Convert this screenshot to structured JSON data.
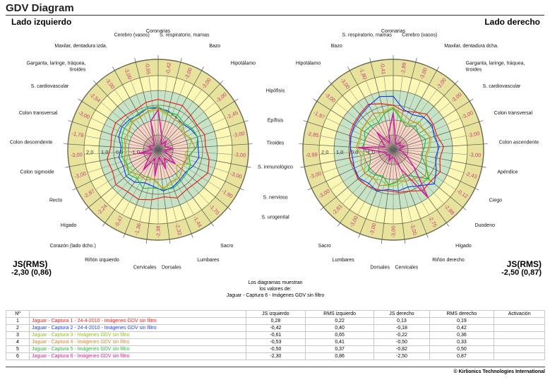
{
  "header": {
    "title": "GDV Diagram",
    "left_title": "Lado izquierdo",
    "right_title": "Lado derecho"
  },
  "summary": {
    "left": {
      "label": "JS(RMS)",
      "value": "-2,30 (0,86)"
    },
    "right": {
      "label": "JS(RMS)",
      "value": "-2,50 (0,87)"
    }
  },
  "note": {
    "lines": [
      "Los diagramas muestran",
      "los valores de:",
      "Jaguar - Captura 6 - Imágenes GDV sin filtro"
    ]
  },
  "shared_labels": [
    "Hipófisis",
    "Epífisis",
    "Tiroides",
    "S. inmunológico",
    "S. nervioso",
    "S. urogenital"
  ],
  "chart_data": [
    {
      "type": "radar",
      "title": "Lado izquierdo",
      "axes": [
        "Coronarias",
        "S. respiratorio, mamas",
        "Bazo",
        "Hipotálamo",
        "Hipófisis",
        "Epífisis",
        "Tiroides",
        "S. inmunológico",
        "S. nervioso",
        "S. urogenital",
        "Sacro",
        "Lumbares",
        "Dorsales",
        "Cervicales",
        "Riñón izquierdo",
        "Corazón (lado dcho.)",
        "Hígado",
        "Recto",
        "Colon sigmoide",
        "Colon descendente",
        "Colon transversal",
        "S. cardiovascular",
        "Garganta, laringe, tráquea,\ntiroides",
        "Maxilar, dentadura izda.",
        "Cerebro (vasos)"
      ],
      "sector_values": [
        "-0,42",
        "-3,00",
        "-3,00",
        "-3,00",
        "-2,45",
        "-3,00",
        "-3,00",
        "-3,00",
        "-1,90",
        "-1,70",
        "-1,44",
        "-2,33",
        "-2,38",
        "-1,36",
        "-0,47",
        "-2,24",
        "-2,87",
        "-3,00",
        "-3,00",
        "-1,78",
        "-3,00",
        "-2,54",
        "-3,00",
        "-3,00",
        "-0,65"
      ],
      "scale": {
        "min": -3,
        "max": 2,
        "ticks": [
          2,
          1,
          0,
          -1
        ],
        "tick_labels": [
          "2,0",
          "1,0",
          "0,0",
          "-1,0"
        ]
      },
      "series": [
        {
          "name": "Captura 1",
          "color": "#e8201c",
          "values": [
            0.4,
            0.3,
            0.4,
            0.2,
            0.1,
            0.3,
            0.2,
            0.5,
            0.7,
            0.4,
            0.3,
            0.5,
            0.2,
            0.4,
            0.6,
            0.5,
            0.7,
            0.4,
            0.5,
            0.2,
            0.3,
            0.4,
            0.2,
            0.1,
            0.3
          ]
        },
        {
          "name": "Captura 2",
          "color": "#1b3ee0",
          "values": [
            -0.2,
            -0.3,
            -0.5,
            -0.6,
            -0.4,
            -0.2,
            -0.3,
            -0.2,
            -0.4,
            -0.6,
            -0.5,
            -0.3,
            -0.2,
            -0.5,
            -0.6,
            -0.3,
            -0.2,
            -0.4,
            -0.3,
            -0.5,
            -0.2,
            -0.1,
            -0.2,
            -0.3,
            -0.1
          ]
        },
        {
          "name": "Captura 3",
          "color": "#9ccc2c",
          "values": [
            -0.3,
            -0.6,
            -0.4,
            -0.8,
            -1.0,
            -0.6,
            -0.9,
            -1.2,
            -0.7,
            -1.4,
            -0.8,
            -0.5,
            -0.4,
            -0.9,
            -1.1,
            -0.6,
            -0.8,
            -0.6,
            -0.9,
            -0.7,
            -0.8,
            -0.6,
            -0.5,
            -0.4,
            -0.4
          ]
        },
        {
          "name": "Captura 4",
          "color": "#d08a30",
          "values": [
            -0.2,
            -0.5,
            -0.7,
            -0.6,
            -0.9,
            -0.7,
            -0.5,
            -0.8,
            -1.1,
            -0.9,
            -0.6,
            -0.7,
            -0.3,
            -1.0,
            -0.8,
            -0.9,
            -0.6,
            -0.5,
            -0.7,
            -0.8,
            -0.6,
            -0.7,
            -0.4,
            -0.5,
            -0.3
          ]
        },
        {
          "name": "Captura 5",
          "color": "#2cb83c",
          "values": [
            -0.1,
            -0.4,
            -0.3,
            -0.5,
            -0.3,
            -0.2,
            -0.4,
            -0.9,
            -0.6,
            -0.5,
            -0.4,
            -0.2,
            -0.3,
            -0.4,
            -0.2,
            -0.6,
            -0.4,
            -0.7,
            -0.5,
            -0.6,
            -0.4,
            -0.3,
            -0.3,
            -0.2,
            -0.1
          ]
        },
        {
          "name": "Captura 6",
          "color": "#d020a0",
          "values": [
            -0.3,
            -2.0,
            -2.6,
            -2.2,
            -2.5,
            -2.4,
            -2.0,
            -2.6,
            -2.2,
            -1.5,
            -2.3,
            -1.6,
            -2.5,
            -1.2,
            -2.4,
            -1.3,
            -2.2,
            -2.5,
            -1.6,
            -2.6,
            -2.3,
            -2.5,
            -2.6,
            -2.4,
            -1.0
          ]
        }
      ]
    },
    {
      "type": "radar",
      "title": "Lado derecho",
      "axes": [
        "Coronarias",
        "Cerebro (vasos)",
        "Maxilar, dentadura dcha.",
        "Garganta, laringe, tráquea,\ntiroides",
        "S. cardiovascular",
        "Colon transversal",
        "Colon ascendente",
        "Apéndice",
        "Ciego",
        "Duodeno",
        "Hígado",
        "Riñón derecho",
        "Cervicales",
        "Dorsales",
        "Lumbares",
        "Sacro",
        "S. urogenital",
        "S. nervioso",
        "S. inmunológico",
        "Tiroides",
        "Epífisis",
        "Hipófisis",
        "Hipotálamo",
        "Bazo",
        "S. respiratorio, mamas"
      ],
      "sector_values": [
        "-2,89",
        "-3,00",
        "-3,00",
        "-3,00",
        "-3,00",
        "-3,00",
        "-3,00",
        "-2,43",
        "-0,12",
        "-2,88",
        "-2,75",
        "-3,00",
        "-3,00",
        "-3,00",
        "-3,00",
        "-2,61",
        "-3,00",
        "-3,00",
        "-0,99",
        "-2,85",
        "-1,97",
        "-3,00",
        "-3,00",
        "-1,80",
        "-0,41"
      ],
      "scale": {
        "min": -3,
        "max": 2,
        "ticks": [
          2,
          1,
          0,
          -1
        ],
        "tick_labels": [
          "2,0",
          "1,0",
          "0,0",
          "-1,0"
        ]
      },
      "series": [
        {
          "name": "Captura 1",
          "color": "#e8201c",
          "values": [
            0.0,
            -0.3,
            -0.1,
            0.3,
            0.2,
            0.1,
            0.4,
            0.2,
            0.5,
            0.3,
            0.4,
            0.0,
            -0.1,
            -0.2,
            -0.1,
            0.0,
            0.1,
            -0.1,
            0.0,
            -0.1,
            0.1,
            0.2,
            0.3,
            0.5,
            0.2
          ]
        },
        {
          "name": "Captura 2",
          "color": "#1b3ee0",
          "values": [
            0.6,
            -0.2,
            -0.3,
            0.0,
            0.1,
            -0.1,
            0.1,
            -0.1,
            0.2,
            0.6,
            0.0,
            -0.3,
            -0.2,
            -0.3,
            0.0,
            -0.2,
            0.0,
            -0.1,
            -0.2,
            -0.1,
            0.0,
            0.1,
            0.2,
            0.4,
            0.7
          ]
        },
        {
          "name": "Captura 3",
          "color": "#9ccc2c",
          "values": [
            -0.1,
            -0.8,
            -1.0,
            -0.4,
            -0.6,
            -0.3,
            -0.5,
            -0.7,
            -0.6,
            0.2,
            -0.4,
            -0.9,
            -0.6,
            -0.5,
            -0.8,
            -0.6,
            -0.5,
            -0.9,
            -1.0,
            -0.6,
            -0.7,
            -0.4,
            -0.5,
            -0.6,
            -0.3
          ]
        },
        {
          "name": "Captura 4",
          "color": "#d08a30",
          "values": [
            -0.2,
            -0.5,
            -0.7,
            -0.6,
            -0.5,
            -0.4,
            -0.6,
            -0.8,
            -0.5,
            -0.2,
            -0.6,
            -0.7,
            -0.9,
            -0.6,
            -0.4,
            -0.7,
            -0.5,
            -0.6,
            -0.8,
            -0.5,
            -0.6,
            -0.5,
            -0.4,
            -0.2,
            -0.4
          ]
        },
        {
          "name": "Captura 5",
          "color": "#2cb83c",
          "values": [
            -0.2,
            -0.9,
            -1.2,
            -0.8,
            -1.0,
            -0.7,
            -0.9,
            -1.1,
            -0.6,
            0.1,
            -0.8,
            -1.2,
            -0.8,
            -0.6,
            -1.1,
            -0.9,
            -0.8,
            -1.3,
            -1.4,
            -0.9,
            -1.0,
            -0.7,
            -0.8,
            -0.9,
            -0.5
          ]
        },
        {
          "name": "Captura 6",
          "color": "#d020a0",
          "values": [
            -0.5,
            -2.4,
            -2.6,
            -2.3,
            -2.5,
            -2.2,
            -2.6,
            -2.4,
            -2.0,
            -1.2,
            1.0,
            -1.6,
            -2.4,
            -2.5,
            -2.2,
            -2.6,
            -2.4,
            -2.5,
            -2.2,
            -0.6,
            -2.4,
            -2.2,
            -1.4,
            -2.5,
            -1.8
          ]
        }
      ]
    }
  ],
  "table": {
    "headers": [
      "Nº",
      "",
      "JS izquierdo",
      "RMS izquierdo",
      "JS derecho",
      "RMS derecho",
      "Activación"
    ],
    "rows": [
      {
        "n": "1",
        "name": "Jaguar - Captura 1 - 24-4-2010 - Imágenes GDV sin filtro",
        "color": "#e8201c",
        "js_l": "0,28",
        "rms_l": "0,22",
        "js_r": "0,13",
        "rms_r": "0,19",
        "act": ""
      },
      {
        "n": "2",
        "name": "Jaguar - Captura 2 - 24-4-2010 - Imágenes GDV sin filtro",
        "color": "#1b3ee0",
        "js_l": "-0,42",
        "rms_l": "0,40",
        "js_r": "-0,18",
        "rms_r": "0,42",
        "act": ""
      },
      {
        "n": "3",
        "name": "Jaguar - Captura 3 - Imágenes GDV sin filtro",
        "color": "#8cc020",
        "js_l": "-0,61",
        "rms_l": "0,65",
        "js_r": "-0,22",
        "rms_r": "0,36",
        "act": ""
      },
      {
        "n": "4",
        "name": "Jaguar - Captura 4 - Imágenes GDV sin filtro",
        "color": "#d08a30",
        "js_l": "-0,53",
        "rms_l": "0,41",
        "js_r": "-0,50",
        "rms_r": "0,33",
        "act": ""
      },
      {
        "n": "5",
        "name": "Jaguar - Captura 5 - Imágenes GDV sin filtro",
        "color": "#2cb83c",
        "js_l": "-0,50",
        "rms_l": "0,37",
        "js_r": "-0,82",
        "rms_r": "0,50",
        "act": ""
      },
      {
        "n": "6",
        "name": "Jaguar - Captura 6 - Imágenes GDV sin filtro",
        "color": "#d020a0",
        "js_l": "-2,30",
        "rms_l": "0,86",
        "js_r": "-2,50",
        "rms_r": "0,87",
        "act": ""
      }
    ]
  },
  "footer": {
    "copyright": "© Kirlionics Technologies International"
  }
}
